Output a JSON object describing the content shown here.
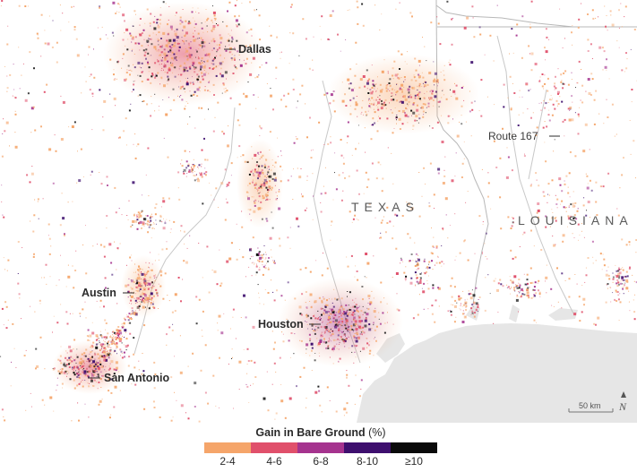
{
  "map": {
    "places": [
      {
        "name": "Dallas"
      },
      {
        "name": "Austin"
      },
      {
        "name": "Houston"
      },
      {
        "name": "San Antonio"
      }
    ],
    "states": [
      "TEXAS",
      "LOUISIANA"
    ],
    "route_label": "Route 167",
    "scale_label": "50 km",
    "north_label": "N"
  },
  "legend": {
    "title": "Gain in Bare Ground",
    "unit": "(%)",
    "classes": [
      {
        "label": "2-4",
        "color": "#f5a56a"
      },
      {
        "label": "4-6",
        "color": "#e0506b"
      },
      {
        "label": "6-8",
        "color": "#a5338e"
      },
      {
        "label": "8-10",
        "color": "#3e0f6e"
      },
      {
        "label": "≥10",
        "color": "#0a0a0a"
      }
    ]
  },
  "colors": {
    "water": "#e6e6e6",
    "land": "#ffffff",
    "border": "#b8b8b8",
    "river": "#c8c8c8"
  }
}
